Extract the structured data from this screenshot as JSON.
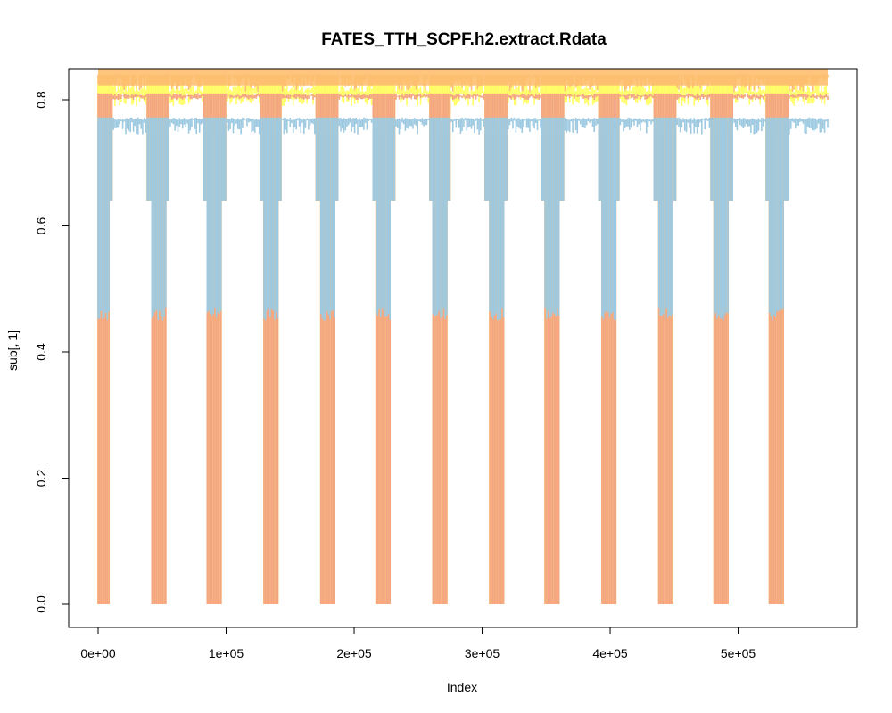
{
  "chart_data": {
    "type": "line",
    "title": "FATES_TTH_SCPF.h2.extract.Rdata",
    "xlabel": "Index",
    "ylabel": "sub[, 1]",
    "xlim": [
      0,
      570000
    ],
    "ylim": [
      0,
      0.84
    ],
    "x_ticks": [
      0,
      100000,
      200000,
      300000,
      400000,
      500000
    ],
    "x_tick_labels": [
      "0e+00",
      "1e+05",
      "2e+05",
      "3e+05",
      "4e+05",
      "5e+05"
    ],
    "y_ticks": [
      0.0,
      0.2,
      0.4,
      0.6,
      0.8
    ],
    "y_tick_labels": [
      "0.0",
      "0.2",
      "0.4",
      "0.6",
      "0.8"
    ],
    "grid": false,
    "legend": "none",
    "period": 44500,
    "series": [
      {
        "color": "#FDBF6F",
        "baseline": 0.84,
        "upper": 0.84,
        "lower": 0.808,
        "dip_low": 0.0,
        "dip_mid": 0.64
      },
      {
        "color": "#FFFF66",
        "baseline": 0.812,
        "upper": 0.825,
        "lower": 0.79,
        "dip_low": 0.0,
        "dip_mid": 0.64
      },
      {
        "color": "#F4A582",
        "baseline": 0.806,
        "upper": 0.81,
        "lower": 0.8,
        "dip_low": 0.0,
        "dip_mid": 0.64
      },
      {
        "color": "#9ECAE1",
        "baseline": 0.768,
        "upper": 0.772,
        "lower": 0.745,
        "dip_low": 0.45,
        "dip_mid": 0.64
      }
    ],
    "dip_positions": [
      3000,
      47000,
      91000,
      135000,
      179000,
      223000,
      267000,
      311000,
      355000,
      399000,
      443000,
      487000,
      530000
    ]
  }
}
